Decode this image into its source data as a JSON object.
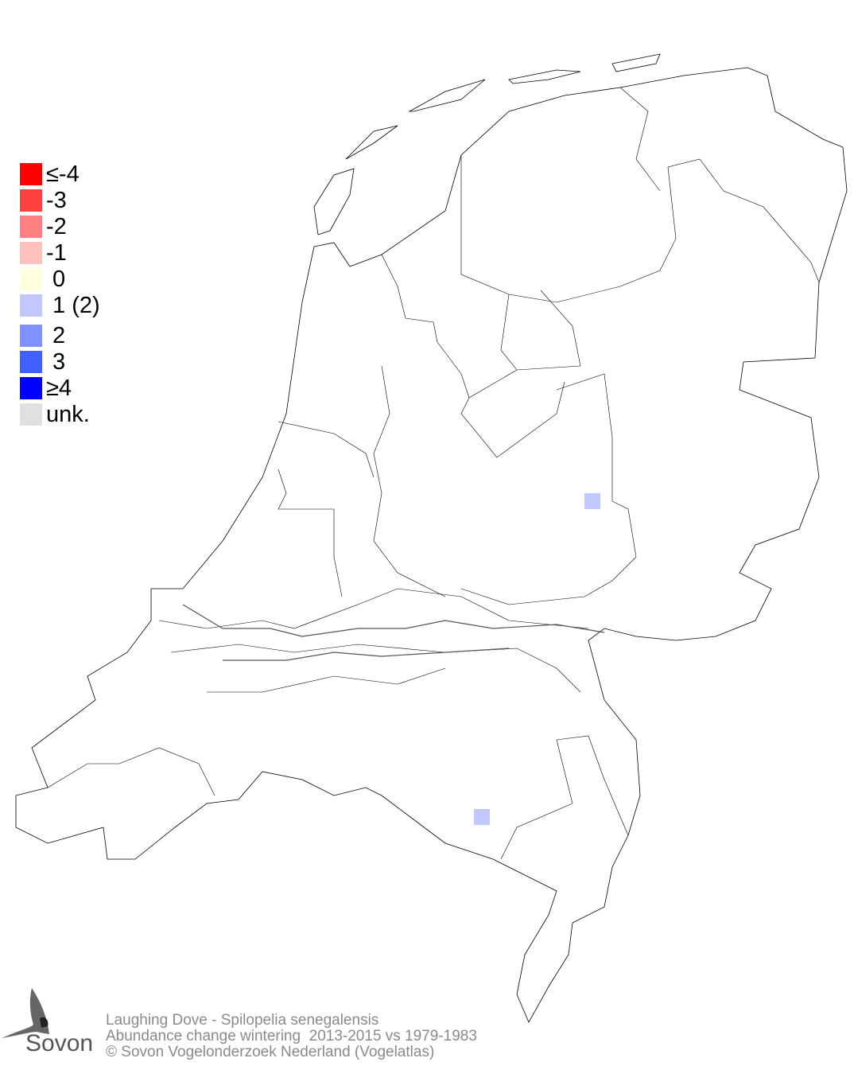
{
  "legend": [
    {
      "label": "≤-4",
      "color": "#ff0000"
    },
    {
      "label": "-3",
      "color": "#ff4040"
    },
    {
      "label": "-2",
      "color": "#ff8080"
    },
    {
      "label": "-1",
      "color": "#ffc0c0"
    },
    {
      "label": " 0",
      "color": "#ffffe0"
    },
    {
      "label": " 1 (2)",
      "color": "#c0c8ff"
    },
    {
      "label": " 2",
      "color": "#8090ff"
    },
    {
      "label": " 3",
      "color": "#4060ff"
    },
    {
      "label": "≥4",
      "color": "#0000ff"
    },
    {
      "label": "unk.",
      "color": "#e0e0e0"
    }
  ],
  "map": {
    "region": "Netherlands",
    "cells": [
      {
        "value": 1,
        "color": "#c0c8ff",
        "location": "east-central"
      },
      {
        "value": 1,
        "color": "#c0c8ff",
        "location": "south"
      }
    ]
  },
  "caption": {
    "line1": "Laughing Dove - Spilopelia senegalensis",
    "line2": "Abundance change wintering  2013-2015 vs 1979-1983",
    "line3": "© Sovon Vogelonderzoek Nederland (Vogelatlas)"
  },
  "logo": {
    "text": "Sovon"
  }
}
